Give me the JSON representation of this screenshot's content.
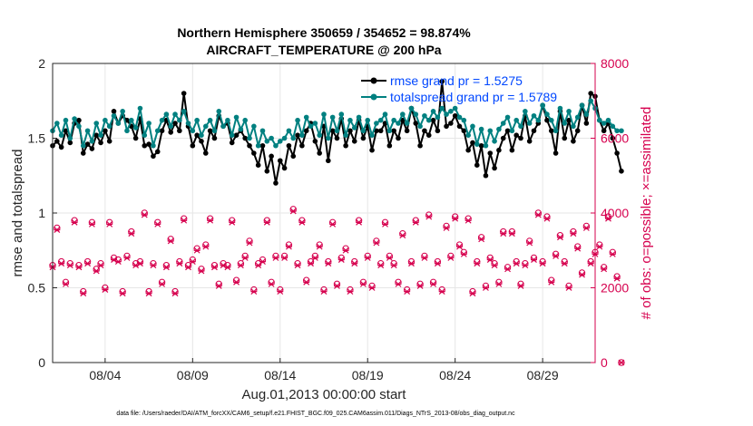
{
  "chart_data": {
    "type": "line",
    "title": "Northern Hemisphere 350659 / 354652 = 98.874%",
    "subtitle": "AIRCRAFT_TEMPERATURE @ 200 hPa",
    "xlabel": "Aug.01,2013 00:00:00 start",
    "ylabel": "rmse and totalspread",
    "y2label": "# of obs: o=possible; ×=assimilated",
    "ylim": [
      0,
      2
    ],
    "y2lim": [
      0,
      8000
    ],
    "xlim": [
      1.0,
      32.0
    ],
    "yticks": [
      "0",
      "0.5",
      "1",
      "1.5",
      "2"
    ],
    "y2ticks": [
      "0",
      "2000",
      "4000",
      "6000",
      "8000"
    ],
    "xtick_values": [
      4,
      9,
      14,
      19,
      24,
      29
    ],
    "xticks": [
      "08/04",
      "08/09",
      "08/14",
      "08/19",
      "08/24",
      "08/29"
    ],
    "grid": true,
    "legend_position": "top-right",
    "x_start": 1.0,
    "x_step": 0.25,
    "series": [
      {
        "name": "rmse grand pr = 1.5275",
        "color": "#000000",
        "marker": "circle",
        "axis": "left",
        "values": [
          1.45,
          1.48,
          1.44,
          1.55,
          1.47,
          1.6,
          1.62,
          1.4,
          1.46,
          1.43,
          1.52,
          1.47,
          1.55,
          1.48,
          1.68,
          1.6,
          1.65,
          1.62,
          1.58,
          1.5,
          1.63,
          1.45,
          1.46,
          1.38,
          1.41,
          1.55,
          1.62,
          1.54,
          1.6,
          1.55,
          1.8,
          1.58,
          1.45,
          1.52,
          1.48,
          1.4,
          1.55,
          1.5,
          1.65,
          1.58,
          1.6,
          1.47,
          1.52,
          1.55,
          1.5,
          1.45,
          1.4,
          1.32,
          1.45,
          1.28,
          1.38,
          1.2,
          1.35,
          1.3,
          1.45,
          1.38,
          1.52,
          1.45,
          1.55,
          1.6,
          1.48,
          1.4,
          1.58,
          1.35,
          1.55,
          1.5,
          1.63,
          1.45,
          1.55,
          1.48,
          1.62,
          1.5,
          1.58,
          1.42,
          1.55,
          1.55,
          1.6,
          1.45,
          1.55,
          1.5,
          1.62,
          1.55,
          1.7,
          1.6,
          1.45,
          1.55,
          1.52,
          1.62,
          1.55,
          1.88,
          1.58,
          1.6,
          1.65,
          1.58,
          1.55,
          1.42,
          1.47,
          1.32,
          1.45,
          1.25,
          1.4,
          1.3,
          1.42,
          1.5,
          1.55,
          1.42,
          1.52,
          1.5,
          1.65,
          1.48,
          1.55,
          1.6,
          1.72,
          1.62,
          1.55,
          1.4,
          1.68,
          1.5,
          1.62,
          1.48,
          1.55,
          1.72,
          1.6,
          1.8,
          1.78,
          1.62,
          1.55,
          1.6,
          1.5,
          1.4,
          1.28
        ]
      },
      {
        "name": "totalspread grand pr = 1.5789",
        "color": "#008080",
        "marker": "circle",
        "axis": "left",
        "values": [
          1.55,
          1.6,
          1.52,
          1.62,
          1.5,
          1.63,
          1.58,
          1.45,
          1.55,
          1.48,
          1.6,
          1.52,
          1.62,
          1.58,
          1.65,
          1.6,
          1.68,
          1.55,
          1.62,
          1.57,
          1.7,
          1.52,
          1.6,
          1.45,
          1.55,
          1.62,
          1.66,
          1.58,
          1.66,
          1.62,
          1.68,
          1.6,
          1.55,
          1.62,
          1.52,
          1.58,
          1.62,
          1.55,
          1.68,
          1.58,
          1.62,
          1.52,
          1.64,
          1.56,
          1.62,
          1.5,
          1.58,
          1.45,
          1.55,
          1.48,
          1.5,
          1.45,
          1.48,
          1.5,
          1.55,
          1.5,
          1.62,
          1.52,
          1.64,
          1.58,
          1.6,
          1.52,
          1.66,
          1.5,
          1.64,
          1.55,
          1.66,
          1.52,
          1.62,
          1.57,
          1.64,
          1.55,
          1.62,
          1.52,
          1.6,
          1.62,
          1.66,
          1.55,
          1.62,
          1.6,
          1.66,
          1.6,
          1.7,
          1.66,
          1.58,
          1.65,
          1.62,
          1.68,
          1.64,
          1.7,
          1.66,
          1.68,
          1.7,
          1.64,
          1.62,
          1.52,
          1.58,
          1.46,
          1.56,
          1.45,
          1.55,
          1.48,
          1.56,
          1.6,
          1.64,
          1.55,
          1.62,
          1.58,
          1.68,
          1.6,
          1.65,
          1.62,
          1.72,
          1.66,
          1.62,
          1.55,
          1.7,
          1.6,
          1.68,
          1.58,
          1.64,
          1.72,
          1.66,
          1.75,
          1.7,
          1.62,
          1.6,
          1.62,
          1.58,
          1.55,
          1.55
        ]
      }
    ],
    "obs_series": [
      {
        "name": "possible",
        "color": "#d6004e",
        "axis": "right",
        "values": [
          2600,
          3600,
          2700,
          2150,
          2650,
          3800,
          2600,
          1900,
          2700,
          3750,
          2500,
          2650,
          2000,
          3750,
          2800,
          2750,
          1900,
          2850,
          3500,
          2650,
          2700,
          4000,
          1900,
          2650,
          3750,
          2150,
          2600,
          3300,
          1900,
          2700,
          3850,
          2600,
          2750,
          3050,
          2500,
          3150,
          3850,
          2600,
          2100,
          2650,
          2600,
          3800,
          2200,
          2650,
          2850,
          3250,
          1950,
          2650,
          2750,
          3800,
          2150,
          2850,
          1950,
          2850,
          3150,
          4100,
          2650,
          3800,
          2200,
          2700,
          2850,
          3150,
          1950,
          2700,
          3750,
          2100,
          2800,
          3050,
          1950,
          2700,
          3800,
          2150,
          2850,
          2050,
          3250,
          2650,
          3750,
          2850,
          2650,
          2150,
          3450,
          1950,
          2700,
          3800,
          2100,
          2850,
          3950,
          2150,
          2700,
          1950,
          3650,
          2850,
          3900,
          3150,
          2950,
          3850,
          1900,
          2700,
          3350,
          2050,
          2800,
          2650,
          2150,
          3500,
          2550,
          3500,
          2700,
          2100,
          2650,
          3250,
          2800,
          4000,
          2700,
          3900,
          2200,
          2900,
          3400,
          2700,
          2050,
          3500,
          3100,
          2400,
          3650,
          2700,
          2950,
          3150,
          2550,
          3900,
          2950,
          2300,
          0
        ]
      },
      {
        "name": "assimilated",
        "color": "#d6004e",
        "axis": "right",
        "values": [
          2550,
          3550,
          2650,
          2100,
          2600,
          3750,
          2550,
          1850,
          2650,
          3700,
          2450,
          2600,
          1950,
          3700,
          2750,
          2700,
          1850,
          2800,
          3450,
          2600,
          2650,
          3950,
          1850,
          2600,
          3700,
          2100,
          2550,
          3250,
          1850,
          2650,
          3800,
          2550,
          2700,
          3000,
          2450,
          3100,
          3800,
          2550,
          2050,
          2600,
          2550,
          3750,
          2150,
          2600,
          2800,
          3200,
          1900,
          2600,
          2700,
          3750,
          2100,
          2800,
          1900,
          2800,
          3100,
          4050,
          2600,
          3750,
          2150,
          2650,
          2800,
          3100,
          1900,
          2650,
          3700,
          2050,
          2750,
          3000,
          1900,
          2650,
          3750,
          2100,
          2800,
          2000,
          3200,
          2600,
          3700,
          2800,
          2600,
          2100,
          3400,
          1900,
          2650,
          3750,
          2050,
          2800,
          3900,
          2100,
          2650,
          1900,
          3600,
          2800,
          3850,
          3100,
          2900,
          3800,
          1850,
          2650,
          3300,
          2000,
          2750,
          2600,
          2100,
          3450,
          2500,
          3450,
          2650,
          2050,
          2600,
          3200,
          2750,
          3950,
          2650,
          3850,
          2150,
          2850,
          3350,
          2650,
          2000,
          3450,
          3050,
          2350,
          3600,
          2650,
          2900,
          3100,
          2500,
          3850,
          2900,
          2250,
          0
        ]
      }
    ],
    "footnote": "data file: /Users/raeder/DAI/ATM_forcXX/CAM6_setup/f.e21.FHIST_BGC.f09_025.CAM6assim.011/Diags_NTrS_2013-08/obs_diag_output.nc"
  }
}
